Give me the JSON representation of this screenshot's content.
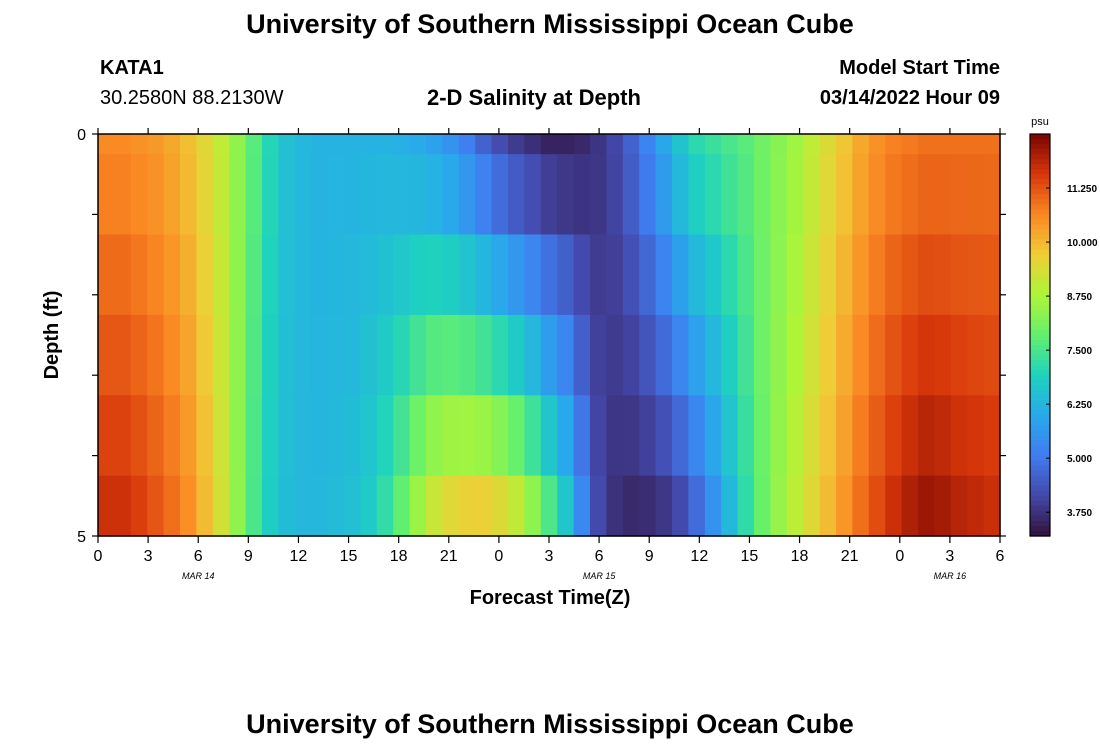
{
  "header": {
    "title": "University of Southern Mississippi Ocean Cube",
    "station": "KATA1",
    "coords": "30.2580N  88.2130W",
    "subtitle": "2-D Salinity at Depth",
    "model_start_label": "Model Start Time",
    "model_start_value": "03/14/2022 Hour 09"
  },
  "footer": {
    "title": "University of Southern Mississippi Ocean Cube"
  },
  "chart_data": {
    "type": "heatmap",
    "title": "2-D Salinity at Depth",
    "xlabel": "Forecast Time(Z)",
    "ylabel": "Depth (ft)",
    "x_tick_labels": [
      "0",
      "3",
      "6",
      "9",
      "12",
      "15",
      "18",
      "21",
      "0",
      "3",
      "6",
      "9",
      "12",
      "15",
      "18",
      "21",
      "0",
      "3",
      "6"
    ],
    "date_labels": [
      {
        "label": "MAR 14",
        "tick_index": 2
      },
      {
        "label": "MAR 15",
        "tick_index": 10
      },
      {
        "label": "MAR 16",
        "tick_index": 17
      }
    ],
    "y_tick_labels": [
      "0",
      "5"
    ],
    "ylim": [
      0,
      5
    ],
    "colorbar": {
      "unit": "psu",
      "min": 3.2,
      "max": 12.5,
      "ticks": [
        "11.250",
        "10.000",
        "8.750",
        "7.500",
        "6.250",
        "5.000",
        "3.750"
      ],
      "tick_values": [
        11.25,
        10.0,
        8.75,
        7.5,
        6.25,
        5.0,
        3.75
      ]
    },
    "rows_depth_top_to_bottom": [
      0.0,
      0.5,
      1.5,
      2.5,
      3.5,
      4.5
    ],
    "time_hours": [
      0,
      1,
      2,
      3,
      4,
      5,
      6,
      7,
      8,
      9,
      10,
      11,
      12,
      13,
      14,
      15,
      16,
      17,
      18,
      19,
      20,
      21,
      22,
      23,
      24,
      25,
      26,
      27,
      28,
      29,
      30,
      31,
      32,
      33,
      34,
      35,
      36,
      37,
      38,
      39,
      40,
      41,
      42,
      43,
      44,
      45,
      46,
      47,
      48,
      49,
      50,
      51,
      52,
      53,
      54
    ],
    "profile_surface": [
      10.6,
      10.6,
      10.5,
      10.4,
      10.2,
      9.9,
      9.5,
      9.0,
      8.4,
      7.7,
      7.0,
      6.5,
      6.3,
      6.2,
      6.2,
      6.2,
      6.2,
      6.2,
      6.1,
      6.0,
      5.8,
      5.5,
      5.1,
      4.6,
      4.2,
      3.9,
      3.7,
      3.5,
      3.5,
      3.6,
      3.8,
      4.1,
      4.6,
      5.2,
      5.9,
      6.6,
      7.1,
      7.3,
      7.5,
      7.7,
      8.0,
      8.3,
      8.6,
      9.0,
      9.4,
      9.8,
      10.2,
      10.5,
      10.7,
      10.8,
      10.9,
      10.9,
      10.9,
      10.9,
      10.9
    ],
    "profile_bottom": [
      11.8,
      11.8,
      11.6,
      11.3,
      11.0,
      10.6,
      10.0,
      9.3,
      8.4,
      7.5,
      6.8,
      6.4,
      6.3,
      6.3,
      6.4,
      6.5,
      6.8,
      7.3,
      8.0,
      8.8,
      9.5,
      9.9,
      10.1,
      10.2,
      10.0,
      9.6,
      8.9,
      8.0,
      7.0,
      5.5,
      4.2,
      3.7,
      3.5,
      3.5,
      3.6,
      3.9,
      4.5,
      5.3,
      6.2,
      7.1,
      7.9,
      8.5,
      9.0,
      9.5,
      10.0,
      10.5,
      11.0,
      11.4,
      11.8,
      12.1,
      12.3,
      12.2,
      12.0,
      11.9,
      11.8
    ]
  }
}
